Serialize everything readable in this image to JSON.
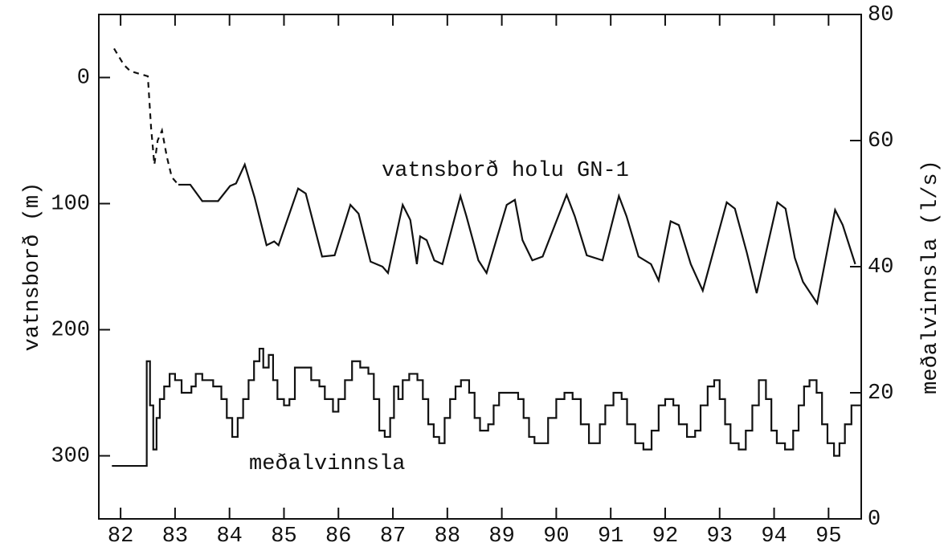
{
  "chart_data": {
    "type": "line",
    "y_label": "vatnsborð (m)",
    "y2_label": "meðalvinnsla (l/s)",
    "annotations": [
      "vatnsborð holu GN-1",
      "meðalvinnsla"
    ],
    "xlim": [
      81.6,
      95.6
    ],
    "xticks": [
      82,
      83,
      84,
      85,
      86,
      87,
      88,
      89,
      90,
      91,
      92,
      93,
      94,
      95
    ],
    "ylim": [
      -50,
      350
    ],
    "y_inverted": true,
    "yticks": [
      0,
      100,
      200,
      300
    ],
    "y2lim": [
      0,
      80
    ],
    "y2ticks": [
      0,
      20,
      40,
      60,
      80
    ],
    "series": [
      {
        "color": "#111111",
        "dash": true,
        "axis": "y",
        "x": [
          81.88,
          82.06,
          82.18,
          82.5,
          82.56,
          82.62,
          82.68,
          82.76,
          82.85,
          82.94,
          83.06
        ],
        "values": [
          -23,
          -10,
          -5,
          -1,
          40,
          69,
          50,
          42,
          63,
          79,
          85
        ]
      },
      {
        "color": "#111111",
        "dash": false,
        "axis": "y",
        "x": [
          83.06,
          83.28,
          83.5,
          83.79,
          84.01,
          84.12,
          84.28,
          84.46,
          84.68,
          84.82,
          84.9,
          85.26,
          85.4,
          85.7,
          85.93,
          86.22,
          86.37,
          86.59,
          86.81,
          86.91,
          87.18,
          87.32,
          87.44,
          87.5,
          87.62,
          87.76,
          87.91,
          88.24,
          88.35,
          88.57,
          88.72,
          89.09,
          89.24,
          89.38,
          89.56,
          89.75,
          90.19,
          90.34,
          90.56,
          90.85,
          91.15,
          91.29,
          91.51,
          91.74,
          91.88,
          92.1,
          92.25,
          92.47,
          92.69,
          93.13,
          93.28,
          93.5,
          93.68,
          94.06,
          94.21,
          94.38,
          94.53,
          94.79,
          95.12,
          95.26,
          95.49
        ],
        "values": [
          85,
          85,
          98,
          98,
          86,
          84,
          69,
          95,
          133,
          130,
          133,
          88,
          92,
          142,
          141,
          101,
          108,
          146,
          150,
          155,
          101,
          113,
          148,
          126,
          129,
          145,
          148,
          94,
          110,
          145,
          155,
          101,
          97,
          129,
          145,
          142,
          93,
          110,
          141,
          145,
          94,
          110,
          142,
          148,
          161,
          114,
          117,
          148,
          169,
          99,
          104,
          139,
          171,
          99,
          104,
          143,
          162,
          179,
          105,
          117,
          148
        ]
      },
      {
        "color": "#111111",
        "dash": false,
        "axis": "y2",
        "step": "post",
        "x": [
          81.84,
          82.48,
          82.54,
          82.6,
          82.66,
          82.72,
          82.8,
          82.9,
          83.0,
          83.12,
          83.3,
          83.38,
          83.5,
          83.7,
          83.85,
          83.95,
          84.05,
          84.15,
          84.25,
          84.35,
          84.45,
          84.55,
          84.62,
          84.72,
          84.8,
          84.88,
          85.0,
          85.1,
          85.2,
          85.5,
          85.65,
          85.75,
          85.9,
          86.0,
          86.12,
          86.25,
          86.4,
          86.55,
          86.65,
          86.75,
          86.85,
          86.95,
          87.02,
          87.1,
          87.18,
          87.3,
          87.45,
          87.55,
          87.65,
          87.75,
          87.85,
          87.95,
          88.05,
          88.15,
          88.25,
          88.4,
          88.5,
          88.6,
          88.75,
          88.85,
          88.95,
          89.3,
          89.4,
          89.5,
          89.6,
          89.85,
          90.0,
          90.15,
          90.3,
          90.45,
          90.6,
          90.8,
          90.9,
          91.05,
          91.2,
          91.3,
          91.45,
          91.6,
          91.75,
          91.88,
          92.0,
          92.15,
          92.25,
          92.4,
          92.55,
          92.65,
          92.78,
          92.9,
          93.0,
          93.1,
          93.2,
          93.35,
          93.48,
          93.6,
          93.72,
          93.85,
          93.95,
          94.05,
          94.2,
          94.35,
          94.45,
          94.55,
          94.65,
          94.78,
          94.88,
          94.98,
          95.1,
          95.2,
          95.3,
          95.42,
          95.55
        ],
        "values": [
          8.4,
          25,
          18,
          11,
          16,
          19,
          21,
          23,
          22,
          20,
          21,
          23,
          22,
          21,
          19,
          16,
          13,
          16,
          19,
          22,
          25,
          27,
          24,
          26,
          22,
          19,
          18,
          19,
          24,
          22,
          21,
          19,
          17,
          19,
          22,
          25,
          24,
          23,
          19,
          14,
          13,
          16,
          21,
          19,
          22,
          23,
          22,
          19,
          15,
          13,
          12,
          16,
          19,
          21,
          22,
          20,
          16,
          14,
          15,
          18,
          20,
          19,
          16,
          13,
          12,
          16,
          19,
          20,
          19,
          15,
          12,
          15,
          18,
          20,
          19,
          15,
          12,
          11,
          14,
          18,
          19,
          18,
          15,
          13,
          14,
          18,
          21,
          22,
          19,
          15,
          12,
          11,
          14,
          18,
          22,
          19,
          14,
          12,
          11,
          14,
          18,
          21,
          22,
          20,
          15,
          12,
          10,
          12,
          15,
          18,
          18
        ]
      }
    ]
  }
}
